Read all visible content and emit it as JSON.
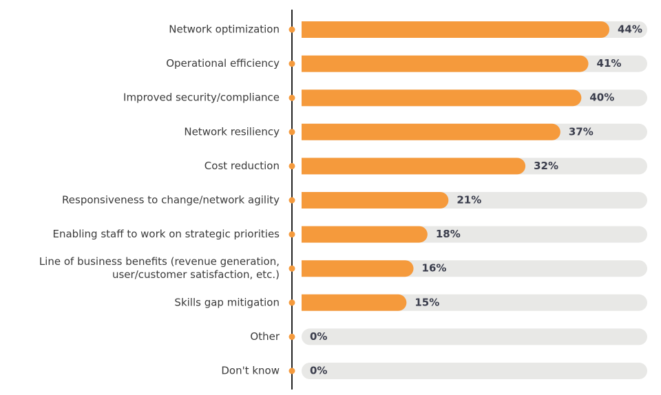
{
  "chart_data": {
    "type": "bar",
    "orientation": "horizontal",
    "title": "",
    "xlabel": "",
    "ylabel": "",
    "xlim": [
      0,
      50
    ],
    "grid": false,
    "categories": [
      [
        "Network optimization"
      ],
      [
        "Operational efficiency"
      ],
      [
        "Improved security/compliance"
      ],
      [
        "Network resiliency"
      ],
      [
        "Cost reduction"
      ],
      [
        "Responsiveness to change/network agility"
      ],
      [
        "Enabling staff to work on strategic priorities"
      ],
      [
        "Line of business benefits (revenue generation,",
        "user/customer satisfaction, etc.)"
      ],
      [
        "Skills gap mitigation"
      ],
      [
        "Other"
      ],
      [
        "Don't know"
      ]
    ],
    "values": [
      44,
      41,
      40,
      37,
      32,
      21,
      18,
      16,
      15,
      0,
      0
    ],
    "value_labels": [
      "44%",
      "41%",
      "40%",
      "37%",
      "32%",
      "21%",
      "18%",
      "16%",
      "15%",
      "0%",
      "0%"
    ],
    "colors": {
      "bar": "#F59A3C",
      "track": "#E8E8E6",
      "axis": "#222222",
      "dot": "#F59A3C",
      "label": "#3A3A3A",
      "value": "#3A3D4C"
    }
  }
}
